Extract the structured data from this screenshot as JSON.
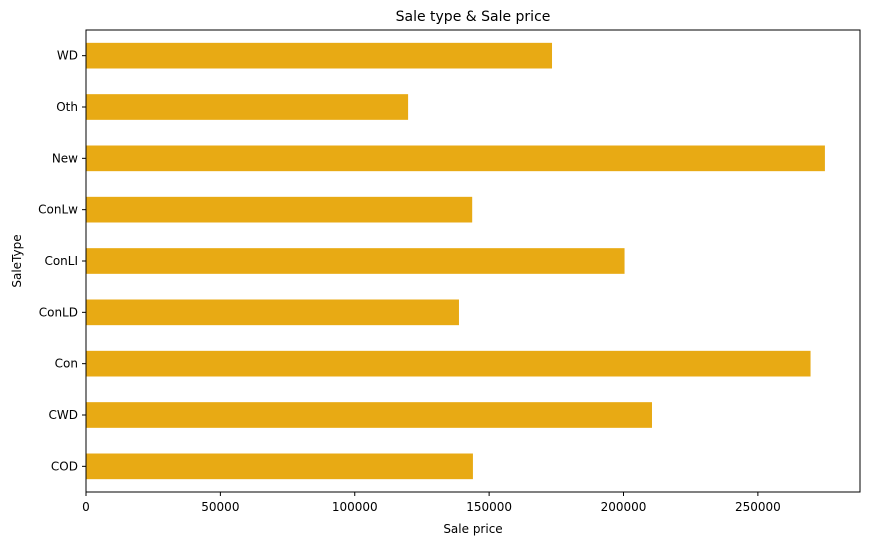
{
  "chart_data": {
    "type": "bar",
    "orientation": "horizontal",
    "title": "Sale type & Sale price",
    "xlabel": "Sale price",
    "ylabel": "SaleType",
    "categories": [
      "COD",
      "CWD",
      "Con",
      "ConLD",
      "ConLI",
      "ConLw",
      "New",
      "Oth",
      "WD"
    ],
    "values": [
      143973,
      210600,
      269600,
      138781,
      200390,
      143700,
      274945,
      119850,
      173402
    ],
    "xlim": [
      0,
      288000
    ],
    "xticks": [
      0,
      50000,
      100000,
      150000,
      200000,
      250000
    ],
    "xtick_labels": [
      "0",
      "50000",
      "100000",
      "150000",
      "200000",
      "250000"
    ],
    "bar_color": "#e8aa14",
    "grid": false,
    "legend": "none"
  }
}
